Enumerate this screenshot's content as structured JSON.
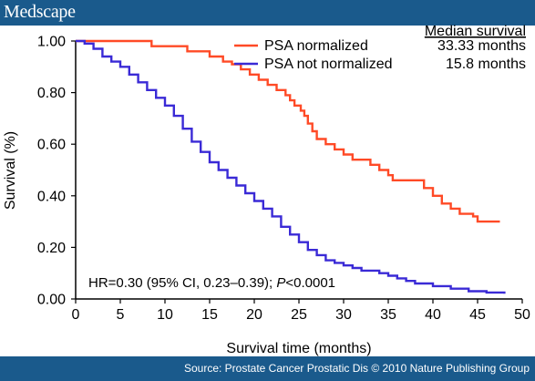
{
  "banner": {
    "logo_text": "Medscape"
  },
  "footer": {
    "source_text": "Source: Prostate Cancer Prostatic Dis © 2010 Nature Publishing Group"
  },
  "chart_data": {
    "type": "line",
    "xlabel": "Survival time (months)",
    "ylabel": "Survival (%)",
    "xlim": [
      0,
      50
    ],
    "ylim": [
      0,
      1
    ],
    "x_ticks": [
      "0",
      "5",
      "10",
      "15",
      "20",
      "25",
      "30",
      "35",
      "40",
      "45",
      "50"
    ],
    "y_ticks": [
      "0.00",
      "0.20",
      "0.40",
      "0.60",
      "0.80",
      "1.00"
    ],
    "grid": false,
    "legend_position": "top-right",
    "legend_header": "Median survival",
    "annotation": {
      "text_before": "HR=0.30 (95% CI, 0.23–0.39); ",
      "p_symbol": "P",
      "text_after": "<0.0001"
    },
    "series": [
      {
        "name": "PSA normalized",
        "median": "33.33 months",
        "color": "#ff4a26",
        "step": true,
        "points": [
          [
            0,
            1.0
          ],
          [
            8,
            1.0
          ],
          [
            8.5,
            0.98
          ],
          [
            12,
            0.98
          ],
          [
            12.5,
            0.96
          ],
          [
            14.5,
            0.96
          ],
          [
            15,
            0.94
          ],
          [
            16,
            0.94
          ],
          [
            16.5,
            0.92
          ],
          [
            17.5,
            0.91
          ],
          [
            18.5,
            0.89
          ],
          [
            19.5,
            0.87
          ],
          [
            20.5,
            0.85
          ],
          [
            21.5,
            0.83
          ],
          [
            22.5,
            0.81
          ],
          [
            23.5,
            0.79
          ],
          [
            24,
            0.77
          ],
          [
            24.5,
            0.75
          ],
          [
            25.2,
            0.73
          ],
          [
            25.6,
            0.71
          ],
          [
            26,
            0.68
          ],
          [
            26.5,
            0.65
          ],
          [
            27,
            0.62
          ],
          [
            28,
            0.6
          ],
          [
            29,
            0.58
          ],
          [
            30,
            0.56
          ],
          [
            31,
            0.54
          ],
          [
            33,
            0.52
          ],
          [
            34,
            0.5
          ],
          [
            35,
            0.48
          ],
          [
            35.5,
            0.46
          ],
          [
            38.5,
            0.46
          ],
          [
            39,
            0.43
          ],
          [
            40,
            0.4
          ],
          [
            41,
            0.37
          ],
          [
            42,
            0.35
          ],
          [
            43,
            0.33
          ],
          [
            44.5,
            0.32
          ],
          [
            45,
            0.3
          ],
          [
            47.5,
            0.3
          ]
        ]
      },
      {
        "name": "PSA not normalized",
        "median": "15.8 months",
        "color": "#3a2ad6",
        "step": true,
        "points": [
          [
            0,
            1.0
          ],
          [
            1,
            0.99
          ],
          [
            2,
            0.97
          ],
          [
            3,
            0.94
          ],
          [
            4,
            0.92
          ],
          [
            5,
            0.9
          ],
          [
            6,
            0.87
          ],
          [
            7,
            0.84
          ],
          [
            8,
            0.81
          ],
          [
            9,
            0.78
          ],
          [
            10,
            0.75
          ],
          [
            11,
            0.71
          ],
          [
            12,
            0.66
          ],
          [
            13,
            0.61
          ],
          [
            14,
            0.57
          ],
          [
            15,
            0.53
          ],
          [
            16,
            0.5
          ],
          [
            17,
            0.47
          ],
          [
            18,
            0.44
          ],
          [
            19,
            0.41
          ],
          [
            20,
            0.38
          ],
          [
            21,
            0.35
          ],
          [
            22,
            0.32
          ],
          [
            23,
            0.28
          ],
          [
            24,
            0.25
          ],
          [
            25,
            0.22
          ],
          [
            26,
            0.19
          ],
          [
            27,
            0.17
          ],
          [
            28,
            0.15
          ],
          [
            29,
            0.14
          ],
          [
            30,
            0.13
          ],
          [
            31,
            0.12
          ],
          [
            32,
            0.11
          ],
          [
            34,
            0.1
          ],
          [
            35,
            0.09
          ],
          [
            36,
            0.08
          ],
          [
            37,
            0.07
          ],
          [
            38,
            0.06
          ],
          [
            40,
            0.05
          ],
          [
            42,
            0.04
          ],
          [
            44,
            0.03
          ],
          [
            46,
            0.025
          ],
          [
            48,
            0.02
          ]
        ]
      }
    ]
  }
}
